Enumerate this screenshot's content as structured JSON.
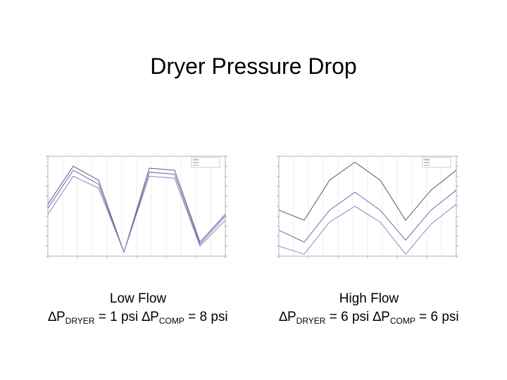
{
  "slide": {
    "title": "Dryer Pressure Drop"
  },
  "left": {
    "caption_heading": "Low Flow",
    "delta_symbol": "∆P",
    "dryer_sub": "DRYER",
    "dryer_value": " = 1 psi ",
    "comp_sub": "COMP",
    "comp_value": " = 8 psi"
  },
  "right": {
    "caption_heading": "High Flow",
    "delta_symbol": "∆P",
    "dryer_sub": "DRYER",
    "dryer_value": " = 6 psi ",
    "comp_sub": "COMP",
    "comp_value": " = 6 psi"
  },
  "chart_data": [
    {
      "type": "line",
      "x": [
        0,
        1,
        2,
        3,
        4,
        5,
        6,
        7
      ],
      "ylim": [
        0,
        10
      ],
      "series": [
        {
          "values": [
            5.2,
            9.0,
            7.6,
            0.4,
            8.8,
            8.6,
            1.4,
            4.2
          ],
          "color": "#5a5a88"
        },
        {
          "values": [
            4.8,
            8.6,
            7.2,
            0.4,
            8.4,
            8.2,
            1.2,
            4.0
          ],
          "color": "#6a6aa8"
        },
        {
          "values": [
            4.2,
            8.0,
            6.8,
            0.4,
            8.0,
            7.8,
            1.0,
            3.6
          ],
          "color": "#8888bb"
        }
      ]
    },
    {
      "type": "line",
      "x": [
        0,
        1,
        2,
        3,
        4,
        5,
        6,
        7
      ],
      "ylim": [
        0,
        10
      ],
      "series": [
        {
          "values": [
            4.6,
            3.6,
            7.6,
            9.4,
            7.6,
            3.6,
            6.6,
            8.6
          ],
          "color": "#555577"
        },
        {
          "values": [
            2.6,
            1.4,
            4.6,
            6.4,
            4.6,
            1.6,
            4.6,
            6.6
          ],
          "color": "#6a6aa8"
        },
        {
          "values": [
            1.0,
            0.2,
            3.4,
            5.0,
            3.4,
            0.2,
            3.2,
            5.2
          ],
          "color": "#8888bb"
        }
      ]
    }
  ]
}
